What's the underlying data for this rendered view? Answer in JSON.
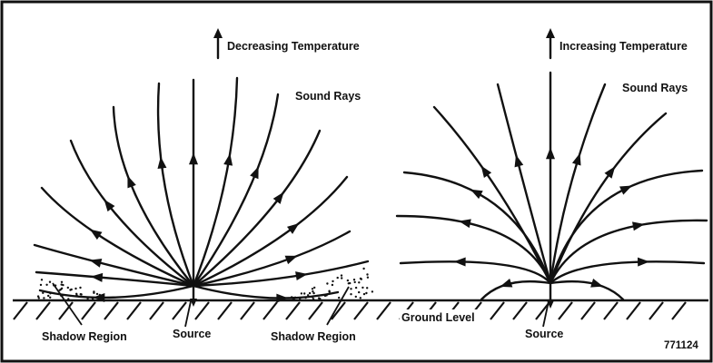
{
  "left_panel": {
    "heading": "Decreasing Temperature",
    "rays_label": "Sound Rays",
    "source_label": "Source",
    "shadow_left_label": "Shadow Region",
    "shadow_right_label": "Shadow Region"
  },
  "right_panel": {
    "heading": "Increasing Temperature",
    "rays_label": "Sound Rays",
    "ground_label": "Ground Level",
    "source_label": "Source"
  },
  "figure_id": "771124",
  "colors": {
    "ink": "#111111",
    "background": "#ffffff"
  }
}
